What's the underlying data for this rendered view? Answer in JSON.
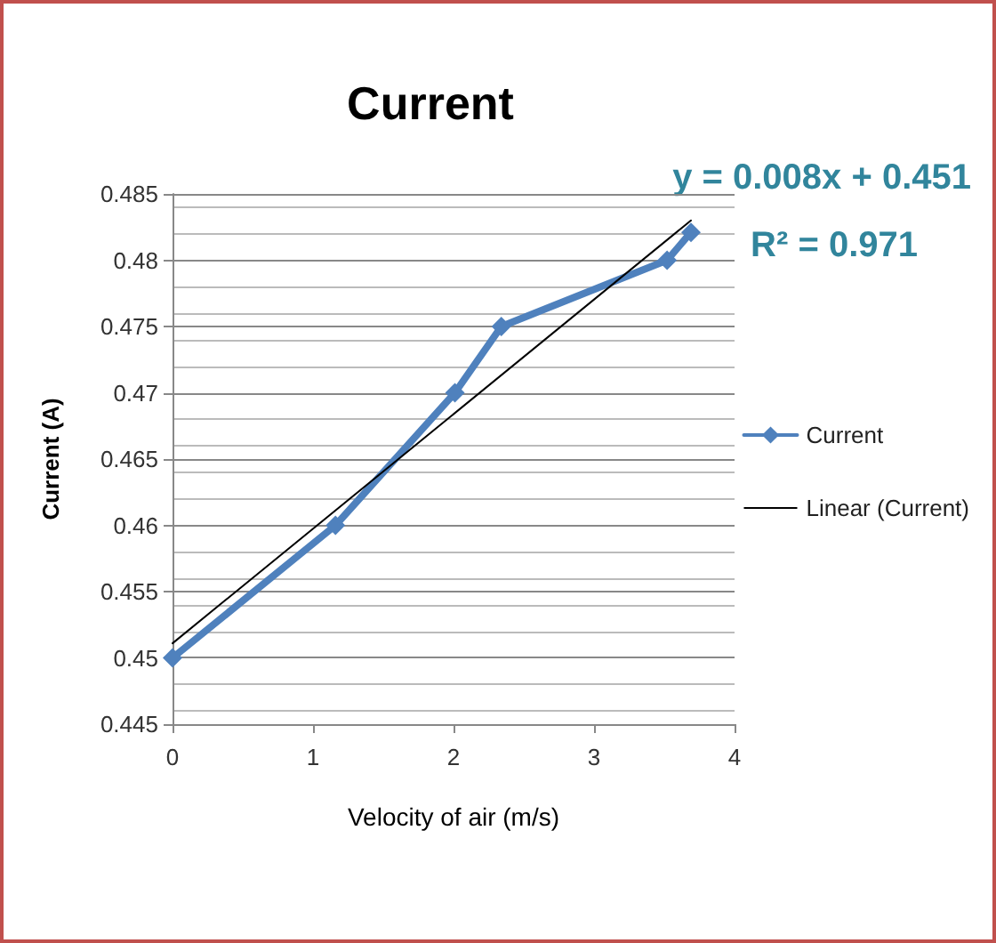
{
  "chart_data": {
    "type": "line",
    "title": "Current",
    "xlabel": "Velocity of air (m/s)",
    "ylabel": "Current (A)",
    "xlim": [
      0,
      4
    ],
    "xticks": [
      0,
      1,
      2,
      3,
      4
    ],
    "ylim": [
      0.445,
      0.485
    ],
    "yticks": [
      0.445,
      0.45,
      0.455,
      0.46,
      0.465,
      0.47,
      0.475,
      0.48,
      0.485
    ],
    "grid": "y",
    "legend": "right",
    "marker": "diamond",
    "annotations": [
      "y = 0.008x + 0.451",
      "R² = 0.971"
    ],
    "series": [
      {
        "name": "Current",
        "color": "#4f81bd",
        "x": [
          0,
          1.16,
          2.01,
          2.34,
          3.52,
          3.69
        ],
        "values": [
          0.45,
          0.46,
          0.47,
          0.475,
          0.48,
          0.4821
        ]
      },
      {
        "name": "Linear (Current)",
        "color": "#000000",
        "marker": "none",
        "x": [
          0,
          3.69
        ],
        "values": [
          0.4511,
          0.483
        ]
      }
    ]
  }
}
